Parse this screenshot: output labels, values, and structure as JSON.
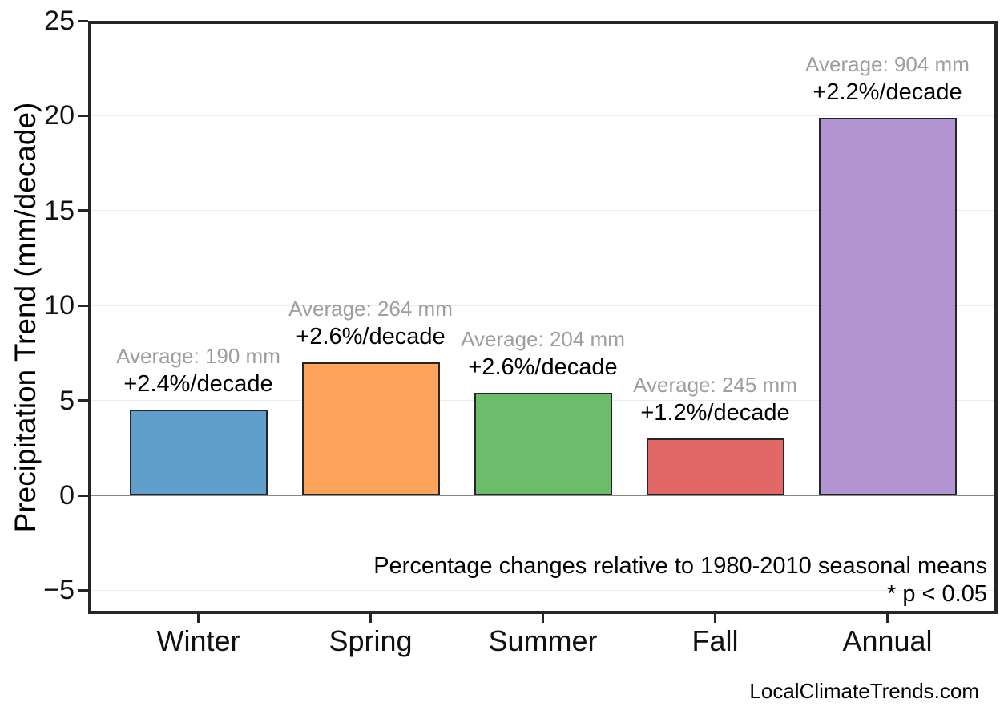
{
  "chart_data": {
    "type": "bar",
    "categories": [
      "Winter",
      "Spring",
      "Summer",
      "Fall",
      "Annual"
    ],
    "values": [
      4.5,
      7.0,
      5.4,
      3.0,
      19.9
    ],
    "value_unit": "mm/decade",
    "bar_colors": [
      "#609fcc",
      "#fca45c",
      "#6bbc6b",
      "#e26767",
      "#b295d0"
    ],
    "bar_edge_color": "#262626",
    "annotations": [
      {
        "average": "Average: 190 mm",
        "trend": "+2.4%/decade"
      },
      {
        "average": "Average: 264 mm",
        "trend": "+2.6%/decade"
      },
      {
        "average": "Average: 204 mm",
        "trend": "+2.6%/decade"
      },
      {
        "average": "Average: 245 mm",
        "trend": "+1.2%/decade"
      },
      {
        "average": "Average: 904 mm",
        "trend": "+2.2%/decade"
      }
    ],
    "title": "",
    "xlabel": "",
    "ylabel": "Precipitation Trend (mm/decade)",
    "yticks": [
      25,
      20,
      15,
      10,
      5,
      0,
      -5
    ],
    "ytick_labels": [
      "25",
      "20",
      "15",
      "10",
      "5",
      "0",
      "−5"
    ],
    "ylim": [
      -6.25,
      25
    ],
    "grid": true,
    "legend_position": "none",
    "notes": {
      "line1": "Percentage changes relative to 1980-2010 seasonal means",
      "line2": "* p < 0.05"
    },
    "footer": "LocalClimateTrends.com",
    "colors": {
      "average_text": "#9e9e9e",
      "trend_text": "#000000",
      "grid": "#ebebeb",
      "zero_line": "#888888",
      "axis": "#262626",
      "background": "#ffffff"
    }
  }
}
